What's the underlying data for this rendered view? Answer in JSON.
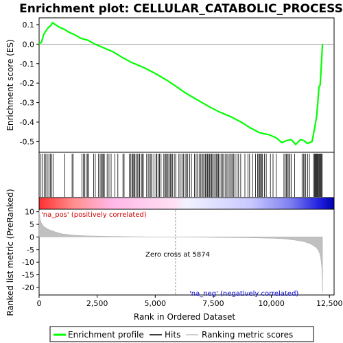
{
  "chart_data": [
    {
      "type": "line",
      "title": "Enrichment plot: CELLULAR_CATABOLIC_PROCESS",
      "ylabel": "Enrichment score (ES)",
      "ylim": [
        -0.555,
        0.135
      ],
      "yticks": [
        0.1,
        0.0,
        -0.1,
        -0.2,
        -0.3,
        -0.4,
        -0.5
      ],
      "ytick_labels": [
        "0.1",
        "0.0",
        "-0.1",
        "-0.2",
        "-0.3",
        "-0.4",
        "-0.5"
      ],
      "xlim": [
        0,
        12700
      ],
      "series": [
        {
          "name": "Enrichment profile",
          "color": "#00ff00",
          "x": [
            0,
            100,
            200,
            300,
            400,
            500,
            580,
            700,
            900,
            1100,
            1300,
            1500,
            1800,
            2100,
            2400,
            2800,
            3200,
            3600,
            4000,
            4500,
            5000,
            5500,
            5874,
            6300,
            6800,
            7300,
            7800,
            8300,
            8700,
            9100,
            9500,
            9900,
            10200,
            10450,
            10650,
            10850,
            11050,
            11250,
            11400,
            11550,
            11750,
            11850,
            11950,
            12000,
            12050,
            12100,
            12130,
            12160,
            12200
          ],
          "y": [
            0.0,
            0.01,
            0.05,
            0.07,
            0.085,
            0.095,
            0.11,
            0.1,
            0.085,
            0.075,
            0.06,
            0.05,
            0.03,
            0.02,
            0.0,
            -0.02,
            -0.04,
            -0.07,
            -0.095,
            -0.12,
            -0.15,
            -0.185,
            -0.215,
            -0.25,
            -0.285,
            -0.32,
            -0.35,
            -0.375,
            -0.4,
            -0.43,
            -0.455,
            -0.465,
            -0.48,
            -0.505,
            -0.495,
            -0.49,
            -0.515,
            -0.49,
            -0.495,
            -0.51,
            -0.5,
            -0.44,
            -0.37,
            -0.3,
            -0.22,
            -0.21,
            -0.15,
            -0.09,
            0.0
          ]
        }
      ]
    },
    {
      "type": "area",
      "ylabel": "Ranked list metric (PreRanked)",
      "xlabel": "Rank in Ordered Dataset",
      "ylim": [
        -23,
        11
      ],
      "yticks": [
        10,
        5,
        0,
        -5,
        -10,
        -15,
        -20
      ],
      "ytick_labels": [
        "10",
        "5",
        "0",
        "-5",
        "-10",
        "-15",
        "-20"
      ],
      "xlim": [
        0,
        12700
      ],
      "xticks": [
        0,
        2500,
        5000,
        7500,
        10000,
        12500
      ],
      "xtick_labels": [
        "0",
        "2,500",
        "5,000",
        "7,500",
        "10,000",
        "12,500"
      ],
      "zero_cross": 5874,
      "annotations": {
        "pos": "'na_pos' (positively correlated)",
        "neg": "'na_neg' (negatively correlated)",
        "zero": "Zero cross at 5874"
      },
      "series": [
        {
          "name": "Ranking metric scores",
          "color": "#c0c0c0",
          "x": [
            0,
            40,
            100,
            200,
            400,
            700,
            1000,
            1500,
            2000,
            3000,
            4000,
            5000,
            5874,
            7000,
            8000,
            9000,
            10000,
            10500,
            11000,
            11400,
            11700,
            11900,
            12000,
            12080,
            12130,
            12170,
            12200
          ],
          "y": [
            10.5,
            7.0,
            5.5,
            4.2,
            3.0,
            2.0,
            1.2,
            0.7,
            0.45,
            0.25,
            0.12,
            0.05,
            0.0,
            -0.1,
            -0.2,
            -0.3,
            -0.5,
            -0.7,
            -1.2,
            -1.8,
            -2.8,
            -4.0,
            -5.0,
            -6.5,
            -8.5,
            -12.0,
            -22.0
          ]
        }
      ]
    }
  ],
  "hits": [
    80,
    150,
    220,
    290,
    350,
    420,
    480,
    540,
    600,
    1110,
    1420,
    1460,
    1850,
    1910,
    1960,
    2020,
    2090,
    2120,
    2350,
    2420,
    2560,
    2630,
    2690,
    2720,
    2760,
    2810,
    2930,
    3010,
    3100,
    3260,
    3390,
    3610,
    3660,
    3890,
    3950,
    4000,
    4040,
    4080,
    4120,
    4170,
    4230,
    4290,
    4330,
    4400,
    4440,
    4490,
    4630,
    4700,
    4760,
    4810,
    4860,
    4940,
    5030,
    5070,
    5130,
    5180,
    5250,
    5370,
    5420,
    5460,
    5500,
    5550,
    5600,
    5650,
    5690,
    5740,
    5820,
    5880,
    6020,
    6070,
    6150,
    6210,
    6290,
    6340,
    6400,
    6480,
    6560,
    6690,
    6760,
    6820,
    6890,
    6960,
    7010,
    7060,
    7110,
    7160,
    7210,
    7250,
    7290,
    7340,
    7380,
    7430,
    7470,
    7530,
    7590,
    7640,
    7690,
    7720,
    7790,
    7850,
    7910,
    7960,
    8030,
    8090,
    8140,
    8210,
    8270,
    8320,
    8380,
    8440,
    8520,
    8590,
    8680,
    8860,
    8990,
    9060,
    9190,
    9320,
    9410,
    9450,
    9490,
    9530,
    9580,
    9620,
    9700,
    9780,
    9960,
    10070,
    10210,
    10540,
    10600,
    10650,
    10700,
    10750,
    10800,
    10850,
    11000,
    11320,
    11380,
    11430,
    11480,
    11560,
    11640,
    11810,
    11860,
    11890,
    11920,
    11950,
    11980,
    12010,
    12040,
    12070,
    12100,
    12130,
    12160,
    12190
  ],
  "legend": {
    "enrichment": "Enrichment profile",
    "hits": "Hits",
    "ranking": "Ranking metric scores"
  },
  "colors": {
    "profile": "#00ff00",
    "hit": "#000000",
    "pos_bar": "#ff0000",
    "neg_bar": "#0000ff",
    "metric_fill": "#c0c0c0",
    "neg_label": "#0000cc",
    "pos_label": "#cc0000"
  }
}
